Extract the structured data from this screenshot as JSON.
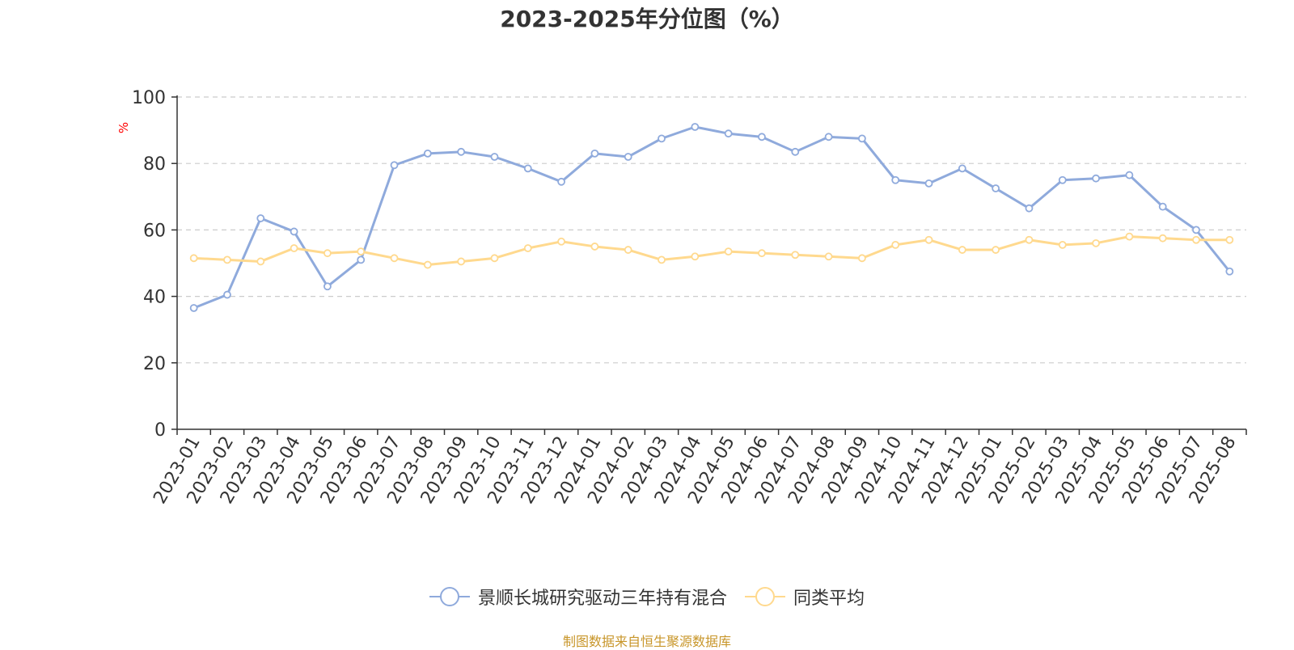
{
  "chart_data": {
    "type": "line",
    "title": "2023-2025年分位图（%）",
    "ylabel": "%",
    "xlabel": "",
    "ylim": [
      0,
      100
    ],
    "yticks": [
      0,
      20,
      40,
      60,
      80,
      100
    ],
    "grid": true,
    "legend_position": "bottom",
    "categories": [
      "2023-01",
      "2023-02",
      "2023-03",
      "2023-04",
      "2023-05",
      "2023-06",
      "2023-07",
      "2023-08",
      "2023-09",
      "2023-10",
      "2023-11",
      "2023-12",
      "2024-01",
      "2024-02",
      "2024-03",
      "2024-04",
      "2024-05",
      "2024-06",
      "2024-07",
      "2024-08",
      "2024-09",
      "2024-10",
      "2024-11",
      "2024-12",
      "2025-01",
      "2025-02",
      "2025-03",
      "2025-04",
      "2025-05",
      "2025-06",
      "2025-07",
      "2025-08"
    ],
    "series": [
      {
        "name": "景顺长城研究驱动三年持有混合",
        "color": "#8faadc",
        "values": [
          36.5,
          40.5,
          63.5,
          59.5,
          43,
          51,
          79.5,
          83,
          83.5,
          82,
          78.5,
          74.5,
          83,
          82,
          87.5,
          91,
          89,
          88,
          83.5,
          88,
          87.5,
          75,
          74,
          78.5,
          72.5,
          66.5,
          75,
          75.5,
          76.5,
          67,
          60,
          47.5
        ]
      },
      {
        "name": "同类平均",
        "color": "#ffd98e",
        "values": [
          51.5,
          51,
          50.5,
          54.5,
          53,
          53.5,
          51.5,
          49.5,
          50.5,
          51.5,
          54.5,
          56.5,
          55,
          54,
          51,
          52,
          53.5,
          53,
          52.5,
          52,
          51.5,
          55.5,
          57,
          54,
          54,
          57,
          55.5,
          56,
          58,
          57.5,
          57,
          57
        ]
      }
    ]
  },
  "source": {
    "text": "制图数据来自恒生聚源数据库",
    "color": "#c8962a"
  }
}
